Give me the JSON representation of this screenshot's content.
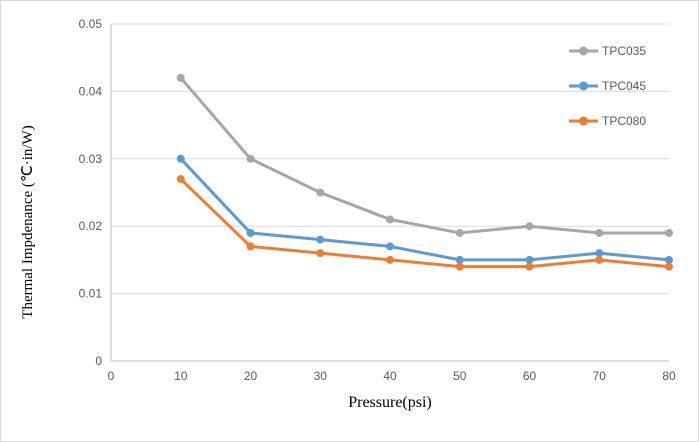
{
  "window": {
    "background": "#ffffff",
    "border_color": "#d9d9d9"
  },
  "chart_data": {
    "type": "line",
    "title": "",
    "xlabel": "Pressure(psi)",
    "ylabel": "Thermal Impdenance (℃·in/W)",
    "x": [
      10,
      20,
      30,
      40,
      50,
      60,
      70,
      80
    ],
    "series": [
      {
        "name": "TPC035",
        "color": "#a6a6a6",
        "values": [
          0.042,
          0.03,
          0.025,
          0.021,
          0.019,
          0.02,
          0.019,
          0.019
        ]
      },
      {
        "name": "TPC045",
        "color": "#5b9bd5",
        "values": [
          0.03,
          0.019,
          0.018,
          0.017,
          0.015,
          0.015,
          0.016,
          0.015
        ]
      },
      {
        "name": "TPC080",
        "color": "#ed7d31",
        "values": [
          0.027,
          0.017,
          0.016,
          0.015,
          0.014,
          0.014,
          0.015,
          0.014
        ]
      }
    ],
    "xlim": [
      0,
      80
    ],
    "ylim": [
      0,
      0.05
    ],
    "xtick_values": [
      0,
      10,
      20,
      30,
      40,
      50,
      60,
      70,
      80
    ],
    "xtick_labels": [
      "0",
      "10",
      "20",
      "30",
      "40",
      "50",
      "60",
      "70",
      "80"
    ],
    "ytick_values": [
      0,
      0.01,
      0.02,
      0.03,
      0.04,
      0.05
    ],
    "ytick_labels": [
      "0",
      "0.01",
      "0.02",
      "0.03",
      "0.04",
      "0.05"
    ],
    "grid": "horizontal",
    "legend_position": "upper-right",
    "styles": {
      "gridline_color": "#d9d9d9",
      "axis_line_color": "#bfbfbf",
      "tick_label_color": "#595959",
      "legend_label_color": "#595959",
      "axis_title_color": "#000000"
    }
  }
}
